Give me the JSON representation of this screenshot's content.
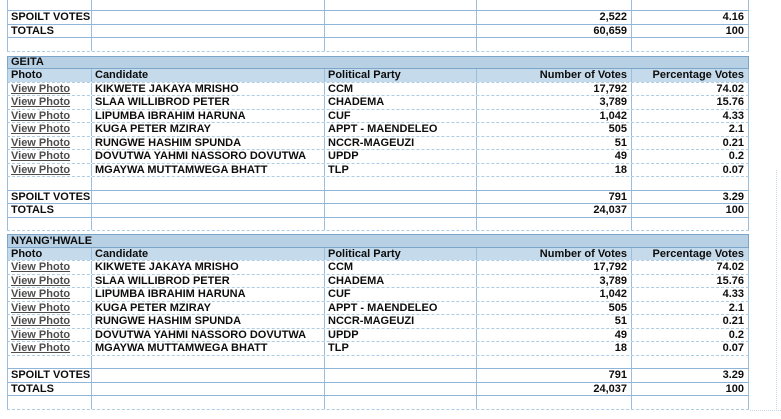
{
  "colors": {
    "section_band_bg": "#b7d0e4",
    "header_bg": "#c5daeb",
    "grid_vertical": "#9cbedd",
    "grid_solid": "#8fb6d8",
    "grid_dashed": "#aecde5",
    "band_border": "#7ca6c9",
    "link_color": "#4d4d4d",
    "text_color": "#0d0d0d"
  },
  "columns": {
    "photo": "Photo",
    "candidate": "Candidate",
    "party": "Political Party",
    "votes": "Number of Votes",
    "pct": "Percentage Votes"
  },
  "labels": {
    "spoilt": "SPOILT VOTES",
    "totals": "TOTALS",
    "view_photo": "View Photo"
  },
  "top_summary": {
    "spoilt_votes": "2,522",
    "spoilt_pct": "4.16",
    "total_votes": "60,659",
    "total_pct": "100"
  },
  "sections": [
    {
      "title": "GEITA",
      "rows": [
        {
          "candidate": "KIKWETE JAKAYA MRISHO",
          "party": "CCM",
          "votes": "17,792",
          "pct": "74.02"
        },
        {
          "candidate": "SLAA WILLIBROD PETER",
          "party": "CHADEMA",
          "votes": "3,789",
          "pct": "15.76"
        },
        {
          "candidate": "LIPUMBA IBRAHIM HARUNA",
          "party": "CUF",
          "votes": "1,042",
          "pct": "4.33"
        },
        {
          "candidate": "KUGA PETER MZIRAY",
          "party": "APPT - MAENDELEO",
          "votes": "505",
          "pct": "2.1"
        },
        {
          "candidate": "RUNGWE HASHIM SPUNDA",
          "party": "NCCR-MAGEUZI",
          "votes": "51",
          "pct": "0.21"
        },
        {
          "candidate": "DOVUTWA YAHMI NASSORO DOVUTWA",
          "party": "UPDP",
          "votes": "49",
          "pct": "0.2"
        },
        {
          "candidate": "MGAYWA MUTTAMWEGA BHATT",
          "party": "TLP",
          "votes": "18",
          "pct": "0.07"
        }
      ],
      "spoilt_votes": "791",
      "spoilt_pct": "3.29",
      "total_votes": "24,037",
      "total_pct": "100"
    },
    {
      "title": "NYANG'HWALE",
      "rows": [
        {
          "candidate": "KIKWETE JAKAYA MRISHO",
          "party": "CCM",
          "votes": "17,792",
          "pct": "74.02"
        },
        {
          "candidate": "SLAA WILLIBROD PETER",
          "party": "CHADEMA",
          "votes": "3,789",
          "pct": "15.76"
        },
        {
          "candidate": "LIPUMBA IBRAHIM HARUNA",
          "party": "CUF",
          "votes": "1,042",
          "pct": "4.33"
        },
        {
          "candidate": "KUGA PETER MZIRAY",
          "party": "APPT - MAENDELEO",
          "votes": "505",
          "pct": "2.1"
        },
        {
          "candidate": "RUNGWE HASHIM SPUNDA",
          "party": "NCCR-MAGEUZI",
          "votes": "51",
          "pct": "0.21"
        },
        {
          "candidate": "DOVUTWA YAHMI NASSORO DOVUTWA",
          "party": "UPDP",
          "votes": "49",
          "pct": "0.2"
        },
        {
          "candidate": "MGAYWA MUTTAMWEGA BHATT",
          "party": "TLP",
          "votes": "18",
          "pct": "0.07"
        }
      ],
      "spoilt_votes": "791",
      "spoilt_pct": "3.29",
      "total_votes": "24,037",
      "total_pct": "100"
    }
  ]
}
